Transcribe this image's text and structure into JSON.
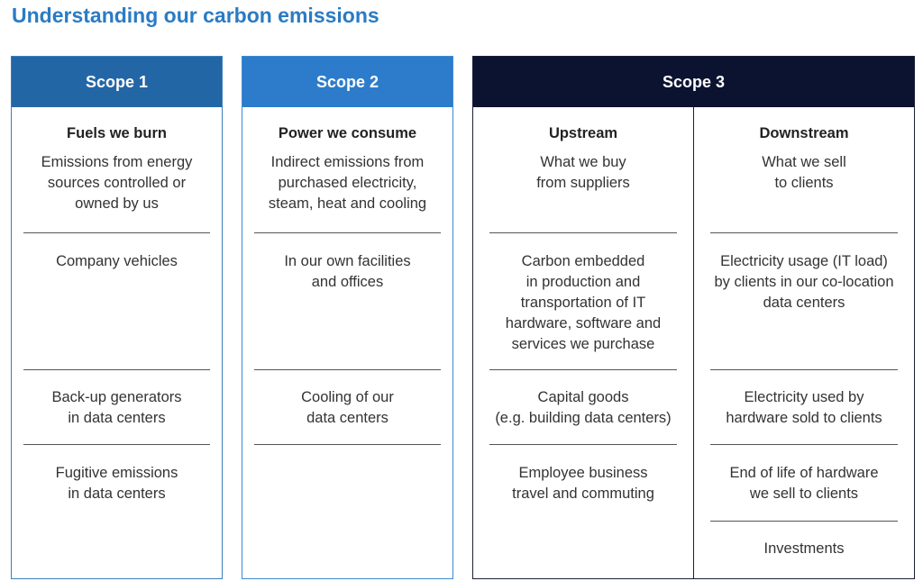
{
  "title": "Understanding our carbon emissions",
  "scope1": {
    "label": "Scope 1",
    "heading": "Fuels we burn",
    "description": [
      "Emissions from energy",
      "sources controlled or",
      "owned by us"
    ],
    "items": [
      [
        "Company vehicles"
      ],
      [
        "Back-up generators",
        "in data centers"
      ],
      [
        "Fugitive emissions",
        "in data centers"
      ]
    ]
  },
  "scope2": {
    "label": "Scope 2",
    "heading": "Power we consume",
    "description": [
      "Indirect emissions from",
      "purchased electricity,",
      "steam, heat and cooling"
    ],
    "items": [
      [
        "In our own facilities",
        "and offices"
      ],
      [
        "Cooling of our",
        "data centers"
      ]
    ]
  },
  "scope3": {
    "label": "Scope 3",
    "upstream": {
      "heading": "Upstream",
      "description": [
        "What we buy",
        "from suppliers"
      ],
      "items": [
        [
          "Carbon embedded",
          "in production and",
          "transportation of IT",
          "hardware, software and",
          "services we purchase"
        ],
        [
          "Capital goods",
          "(e.g. building data centers)"
        ],
        [
          "Employee business",
          "travel and commuting"
        ]
      ]
    },
    "downstream": {
      "heading": "Downstream",
      "description": [
        "What we sell",
        "to clients"
      ],
      "items": [
        [
          "Electricity usage (IT load)",
          "by clients in our co-location",
          "data centers"
        ],
        [
          "Electricity used by",
          "hardware sold to clients"
        ],
        [
          "End of life of hardware",
          "we sell to clients"
        ],
        [
          "Investments"
        ]
      ]
    }
  }
}
